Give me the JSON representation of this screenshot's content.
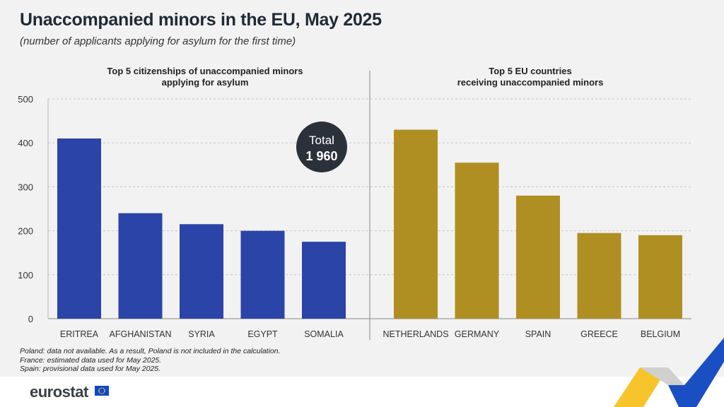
{
  "title": "Unaccompanied minors in the EU, May 2025",
  "subtitle": "(number of applicants applying for asylum for the first time)",
  "total_badge": {
    "line1": "Total",
    "line2": "1 960"
  },
  "notes": [
    "Poland: data not available. As a result, Poland is not included in the calculation.",
    "France: estimated  data used for May 2025.",
    "Spain: provisional data used for May 2025."
  ],
  "logo": "eurostat",
  "colors": {
    "left_bars": "#2b44a8",
    "right_bars": "#b08f22",
    "badge": "#2b313a",
    "background": "#f2f2f2"
  },
  "chart_data": [
    {
      "type": "bar",
      "title_lines": [
        "Top 5 citizenships of unaccompanied minors",
        "applying for asylum"
      ],
      "categories": [
        "ERITREA",
        "AFGHANISTAN",
        "SYRIA",
        "EGYPT",
        "SOMALIA"
      ],
      "values": [
        410,
        240,
        215,
        200,
        175
      ],
      "ylim": [
        0,
        500
      ],
      "yticks": [
        0,
        100,
        200,
        300,
        400,
        500
      ],
      "grid": true
    },
    {
      "type": "bar",
      "title_lines": [
        "Top 5 EU countries",
        "receiving unaccompanied minors"
      ],
      "categories": [
        "NETHERLANDS",
        "GERMANY",
        "SPAIN",
        "GREECE",
        "BELGIUM"
      ],
      "values": [
        430,
        355,
        280,
        195,
        190
      ],
      "ylim": [
        0,
        500
      ],
      "grid": true
    }
  ]
}
